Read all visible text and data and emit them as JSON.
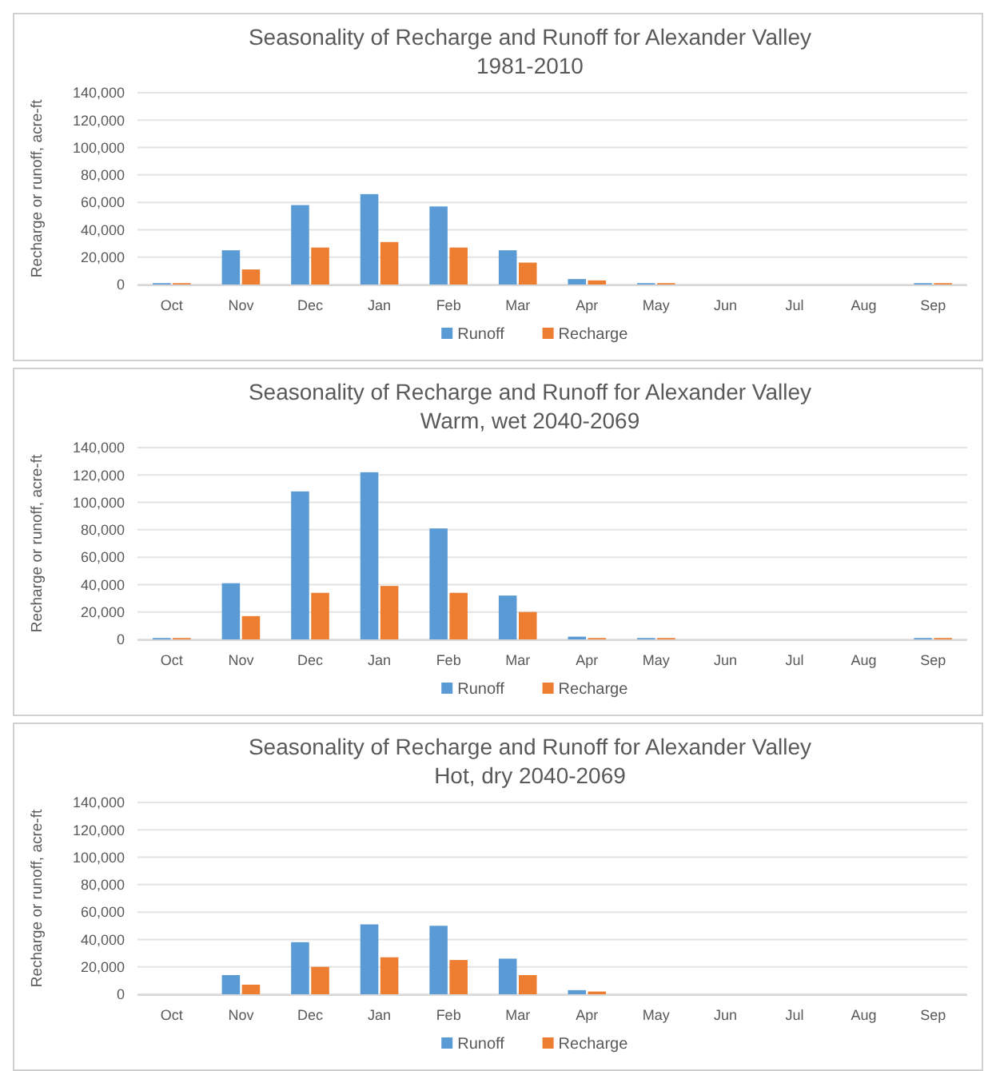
{
  "chart_data": [
    {
      "type": "bar",
      "title": "Seasonality of Recharge and Runoff for Alexander Valley",
      "subtitle": "1981-2010",
      "ylabel": "Recharge or runoff, acre-ft",
      "categories": [
        "Oct",
        "Nov",
        "Dec",
        "Jan",
        "Feb",
        "Mar",
        "Apr",
        "May",
        "Jun",
        "Jul",
        "Aug",
        "Sep"
      ],
      "series": [
        {
          "name": "Runoff",
          "color": "#5b9bd5",
          "values": [
            1000,
            25000,
            58000,
            66000,
            57000,
            25000,
            4000,
            1000,
            0,
            0,
            0,
            1000
          ]
        },
        {
          "name": "Recharge",
          "color": "#ed7d31",
          "values": [
            1000,
            11000,
            27000,
            31000,
            27000,
            16000,
            3000,
            1000,
            0,
            0,
            0,
            1000
          ]
        }
      ],
      "ylim": [
        0,
        140000
      ],
      "yticks": [
        {
          "value": 0,
          "label": "0"
        },
        {
          "value": 20000,
          "label": "20,000"
        },
        {
          "value": 40000,
          "label": "40,000"
        },
        {
          "value": 60000,
          "label": "60,000"
        },
        {
          "value": 80000,
          "label": "80,000"
        },
        {
          "value": 100000,
          "label": "100,000"
        },
        {
          "value": 120000,
          "label": "120,000"
        },
        {
          "value": 140000,
          "label": "140,000"
        }
      ],
      "grid": "y",
      "legend": "bottom"
    },
    {
      "type": "bar",
      "title": "Seasonality of Recharge and Runoff for Alexander Valley",
      "subtitle": "Warm, wet 2040-2069",
      "ylabel": "Recharge or runoff, acre-ft",
      "categories": [
        "Oct",
        "Nov",
        "Dec",
        "Jan",
        "Feb",
        "Mar",
        "Apr",
        "May",
        "Jun",
        "Jul",
        "Aug",
        "Sep"
      ],
      "series": [
        {
          "name": "Runoff",
          "color": "#5b9bd5",
          "values": [
            1000,
            41000,
            108000,
            122000,
            81000,
            32000,
            2000,
            1000,
            0,
            0,
            0,
            1000
          ]
        },
        {
          "name": "Recharge",
          "color": "#ed7d31",
          "values": [
            1000,
            17000,
            34000,
            39000,
            34000,
            20000,
            1000,
            1000,
            0,
            0,
            0,
            1000
          ]
        }
      ],
      "ylim": [
        0,
        140000
      ],
      "yticks": [
        {
          "value": 0,
          "label": "0"
        },
        {
          "value": 20000,
          "label": "20,000"
        },
        {
          "value": 40000,
          "label": "40,000"
        },
        {
          "value": 60000,
          "label": "60,000"
        },
        {
          "value": 80000,
          "label": "80,000"
        },
        {
          "value": 100000,
          "label": "100,000"
        },
        {
          "value": 120000,
          "label": "120,000"
        },
        {
          "value": 140000,
          "label": "140,000"
        }
      ],
      "grid": "y",
      "legend": "bottom"
    },
    {
      "type": "bar",
      "title": "Seasonality of Recharge and Runoff for Alexander Valley",
      "subtitle": "Hot, dry 2040-2069",
      "ylabel": "Recharge or runoff, acre-ft",
      "categories": [
        "Oct",
        "Nov",
        "Dec",
        "Jan",
        "Feb",
        "Mar",
        "Apr",
        "May",
        "Jun",
        "Jul",
        "Aug",
        "Sep"
      ],
      "series": [
        {
          "name": "Runoff",
          "color": "#5b9bd5",
          "values": [
            0,
            14000,
            38000,
            51000,
            50000,
            26000,
            3000,
            0,
            0,
            0,
            0,
            0
          ]
        },
        {
          "name": "Recharge",
          "color": "#ed7d31",
          "values": [
            0,
            7000,
            20000,
            27000,
            25000,
            14000,
            2000,
            0,
            0,
            0,
            0,
            0
          ]
        }
      ],
      "ylim": [
        0,
        140000
      ],
      "yticks": [
        {
          "value": 0,
          "label": "0"
        },
        {
          "value": 20000,
          "label": "20,000"
        },
        {
          "value": 40000,
          "label": "40,000"
        },
        {
          "value": 60000,
          "label": "60,000"
        },
        {
          "value": 80000,
          "label": "80,000"
        },
        {
          "value": 100000,
          "label": "100,000"
        },
        {
          "value": 120000,
          "label": "120,000"
        },
        {
          "value": 140000,
          "label": "140,000"
        }
      ],
      "grid": "y",
      "legend": "bottom"
    }
  ]
}
